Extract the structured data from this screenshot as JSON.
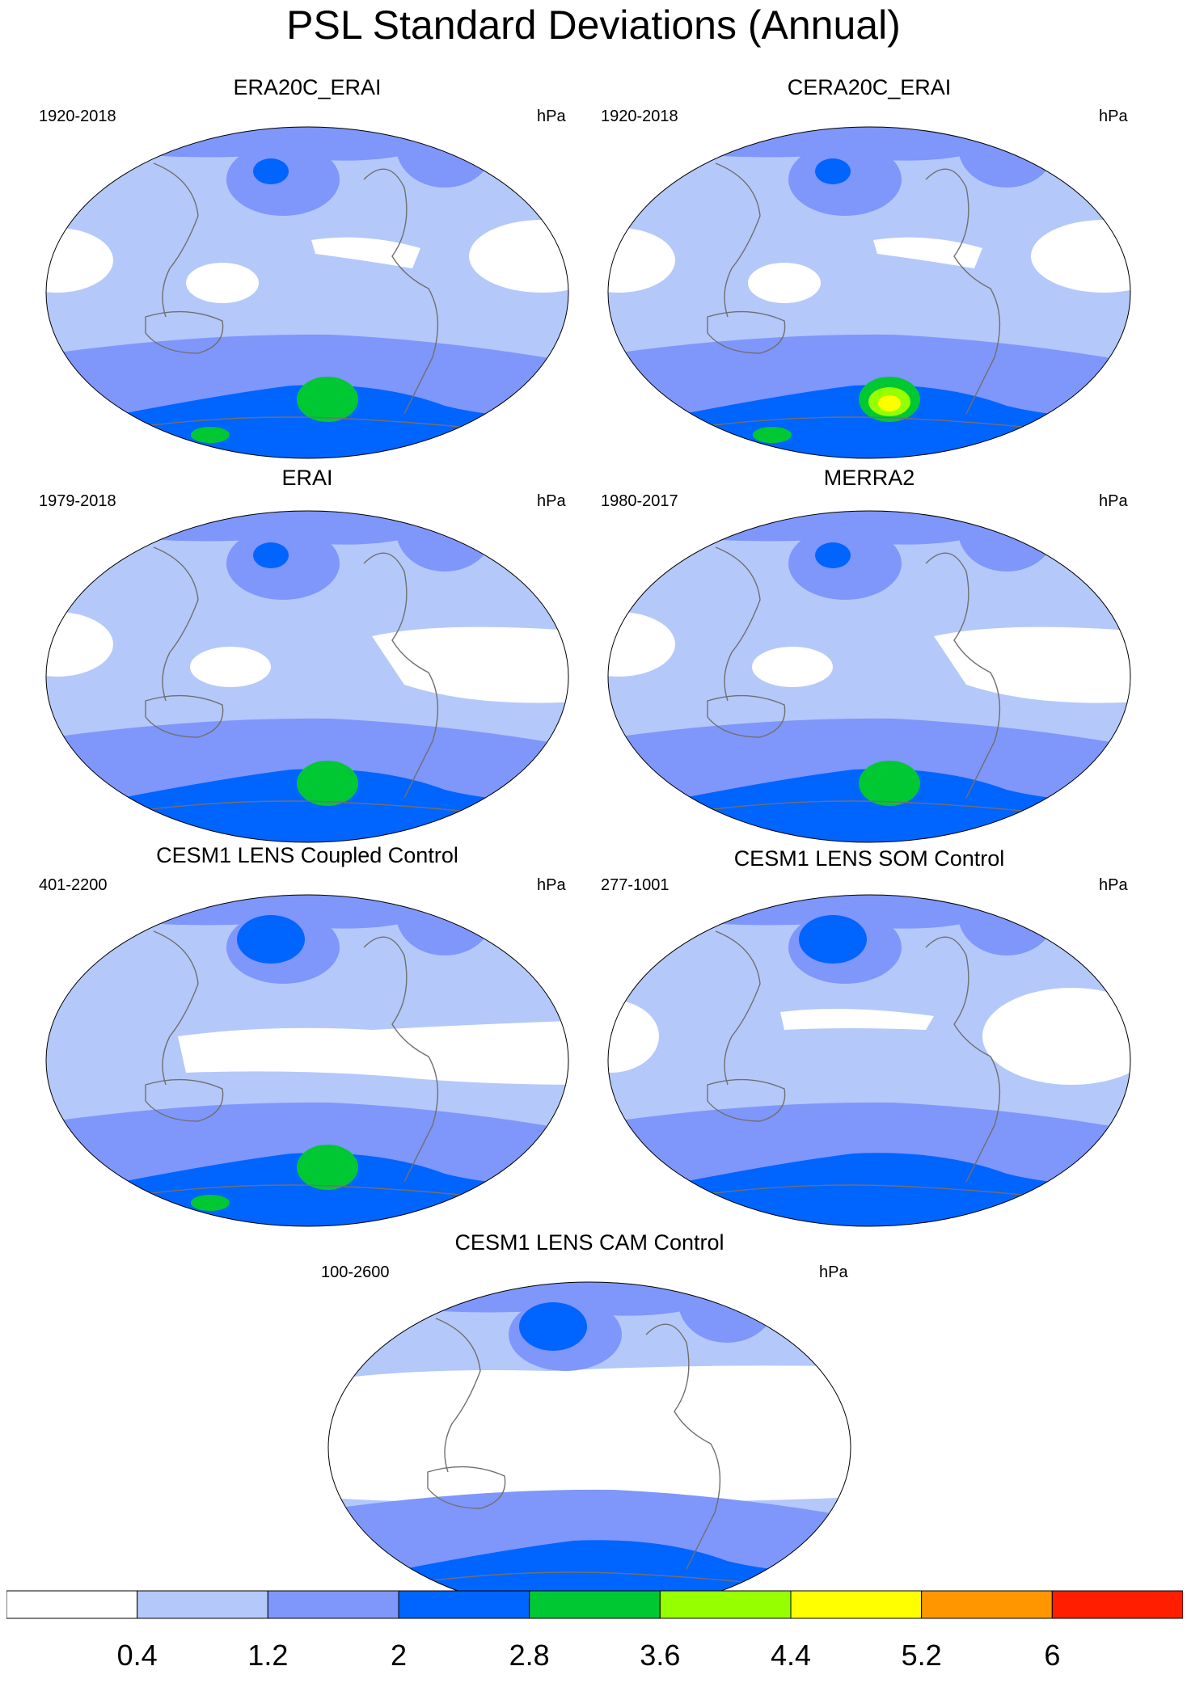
{
  "title": "PSL Standard Deviations (Annual)",
  "units": "hPa",
  "panels": [
    {
      "name": "ERA20C_ERAI",
      "period": "1920-2018",
      "variant": "reanalysis-20c"
    },
    {
      "name": "CERA20C_ERAI",
      "period": "1920-2018",
      "variant": "reanalysis-cera"
    },
    {
      "name": "ERAI",
      "period": "1979-2018",
      "variant": "reanalysis-modern"
    },
    {
      "name": "MERRA2",
      "period": "1980-2017",
      "variant": "reanalysis-modern"
    },
    {
      "name": "CESM1 LENS Coupled Control",
      "period": "401-2200",
      "variant": "model-coupled"
    },
    {
      "name": "CESM1 LENS SOM Control",
      "period": "277-1001",
      "variant": "model-som"
    },
    {
      "name": "CESM1 LENS CAM Control",
      "period": "100-2600",
      "variant": "model-cam"
    }
  ],
  "colorbar": {
    "colors": [
      "#ffffff",
      "#b4c8fa",
      "#7f96fa",
      "#0064ff",
      "#00c832",
      "#96ff00",
      "#ffff00",
      "#ff9600",
      "#ff1e00"
    ],
    "labels": [
      "0.4",
      "1.2",
      "2",
      "2.8",
      "3.6",
      "4.4",
      "5.2",
      "6"
    ]
  }
}
